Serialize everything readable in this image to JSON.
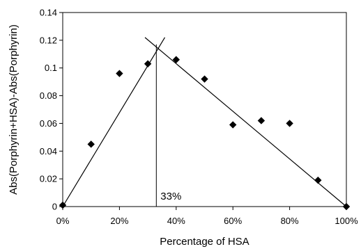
{
  "chart_data": {
    "type": "scatter",
    "title": "",
    "xlabel": "Percentage of HSA",
    "ylabel": "Abs(Porphyrin+HSA)-Abs(Porphyrin)",
    "xlim": [
      0,
      100
    ],
    "ylim": [
      0,
      0.14
    ],
    "x_ticks": [
      0,
      20,
      40,
      60,
      80,
      100
    ],
    "x_tick_labels": [
      "0%",
      "20%",
      "40%",
      "60%",
      "80%",
      "100%"
    ],
    "y_ticks": [
      0,
      0.02,
      0.04,
      0.06,
      0.08,
      0.1,
      0.12,
      0.14
    ],
    "y_tick_labels": [
      "0",
      "0.02",
      "0.04",
      "0.06",
      "0.08",
      "0.1",
      "0.12",
      "0.14"
    ],
    "grid": false,
    "legend": "none",
    "series": [
      {
        "marker": "diamond",
        "color": "#000000",
        "points": [
          [
            0,
            0.001
          ],
          [
            10,
            0.045
          ],
          [
            20,
            0.096
          ],
          [
            30,
            0.103
          ],
          [
            40,
            0.106
          ],
          [
            50,
            0.092
          ],
          [
            60,
            0.059
          ],
          [
            70,
            0.062
          ],
          [
            80,
            0.06
          ],
          [
            90,
            0.019
          ],
          [
            100,
            0.0
          ]
        ]
      }
    ],
    "fit_lines": [
      {
        "from": [
          0,
          0.0
        ],
        "to": [
          36,
          0.122
        ]
      },
      {
        "from": [
          29,
          0.122
        ],
        "to": [
          100,
          0.0
        ]
      }
    ],
    "annotation": {
      "text": "33%",
      "x": 33,
      "line_from_y": 0,
      "line_to_y": 0.117
    }
  }
}
